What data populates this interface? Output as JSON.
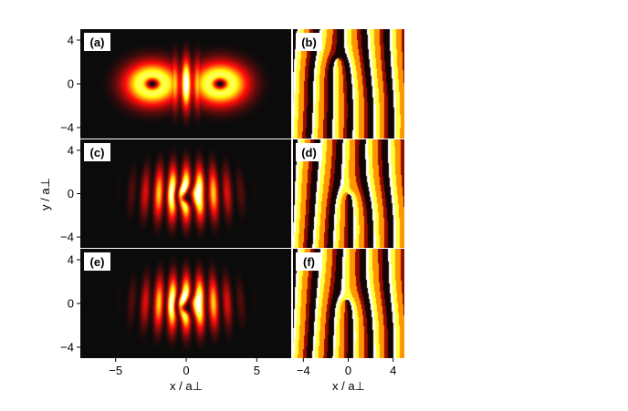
{
  "chart_data": {
    "type": "heatmap",
    "panels": [
      {
        "label": "(a)",
        "kind": "density",
        "lobes": true,
        "dark_core_x": [
          -2.4,
          2.4
        ],
        "fringes": 7
      },
      {
        "label": "(b)",
        "kind": "phase",
        "vortex_at": [
          -0.9,
          2.3
        ]
      },
      {
        "label": "(c)",
        "kind": "density",
        "lobes": false,
        "fringes": 9
      },
      {
        "label": "(d)",
        "kind": "phase",
        "vortex_at": [
          0.0,
          0.0
        ]
      },
      {
        "label": "(e)",
        "kind": "density",
        "lobes": false,
        "fringes": 9
      },
      {
        "label": "(f)",
        "kind": "phase",
        "vortex_at": [
          -0.2,
          0.3
        ]
      }
    ],
    "left_x_ticks": [
      "−5",
      "0",
      "5"
    ],
    "left_x_tick_values": [
      -5,
      0,
      5
    ],
    "left_xlim": [
      -7.5,
      7.5
    ],
    "right_x_ticks": [
      "−4",
      "0",
      "4"
    ],
    "right_x_tick_values": [
      -4,
      0,
      4
    ],
    "right_xlim": [
      -5,
      5
    ],
    "y_ticks": [
      "4",
      "0",
      "−4"
    ],
    "y_tick_values": [
      4,
      0,
      -4
    ],
    "ylim": [
      -5,
      5
    ],
    "xlabel_left": "x / a⊥",
    "xlabel_right": "x / a⊥",
    "ylabel": "y / a⊥",
    "colormap": "hot",
    "colors": {
      "background": "#0b0b0b",
      "low": "#7a0000",
      "mid": "#ff6a00",
      "high": "#ffff40"
    }
  }
}
